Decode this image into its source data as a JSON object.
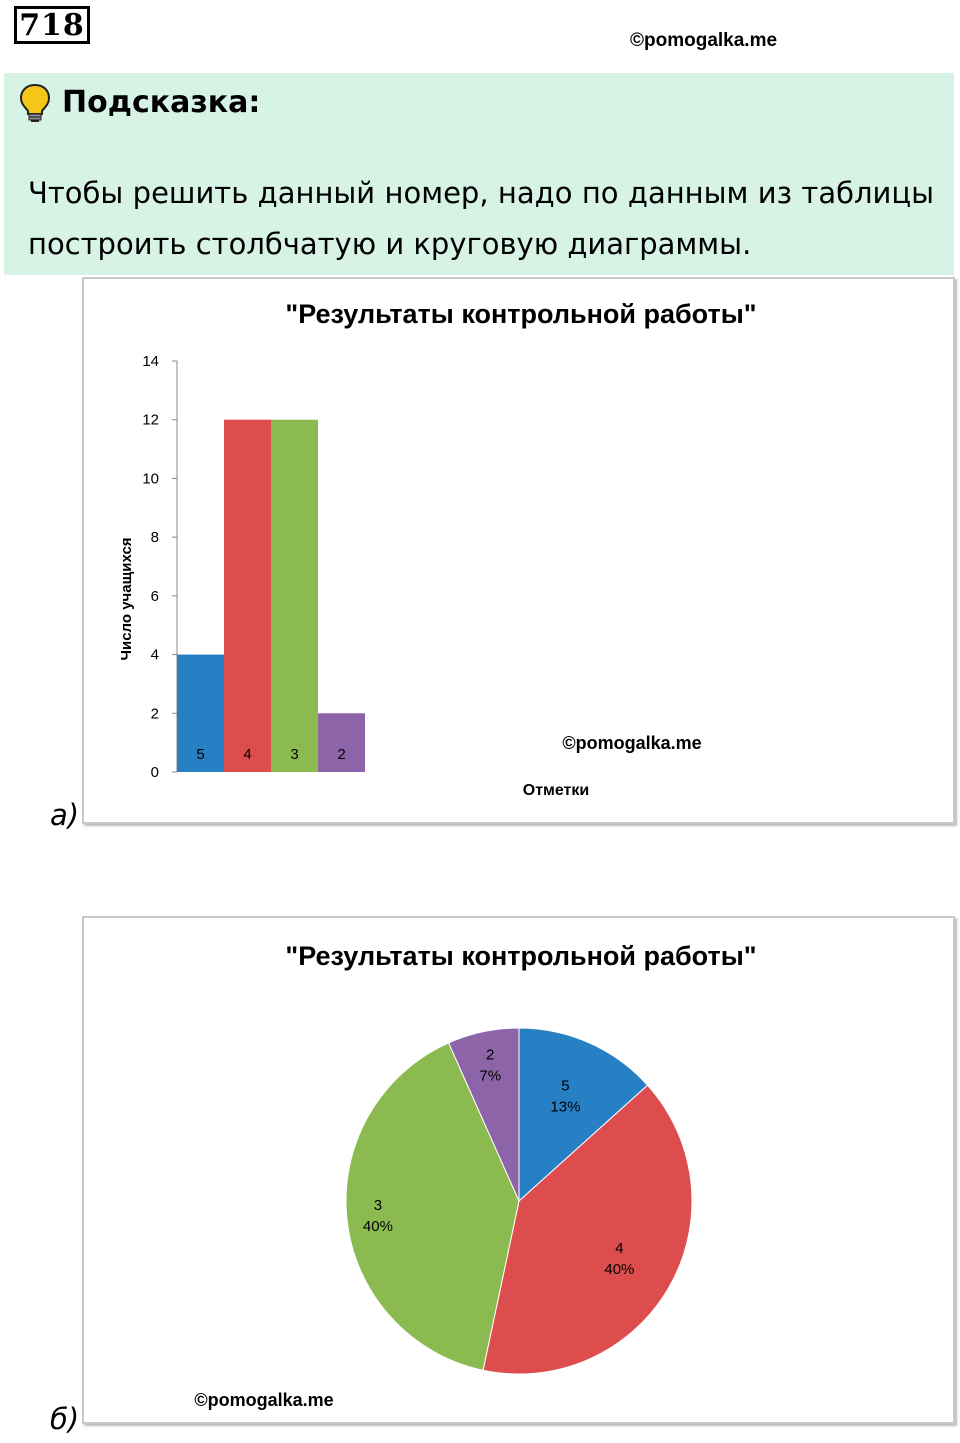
{
  "header": {
    "problem_number": "718",
    "watermark": "©pomogalka.me"
  },
  "hint": {
    "title": "Подсказка:",
    "text": "Чтобы решить данный номер, надо по данным из таблицы построить столбчатую и круговую диаграммы."
  },
  "labels": {
    "part_a": "а)",
    "part_b": "б)"
  },
  "colors": {
    "hint_bg": "#d6f3e6",
    "grade5": "#2880c4",
    "grade4": "#dd4d4d",
    "grade3": "#8bbb50",
    "grade2": "#8e64a8"
  },
  "chart_data": [
    {
      "type": "bar",
      "title": "\"Результаты контрольной работы\"",
      "xlabel": "Отметки",
      "ylabel": "Число учащихся",
      "ylim": [
        0,
        14
      ],
      "yticks": [
        0,
        2,
        4,
        6,
        8,
        10,
        12,
        14
      ],
      "categories": [
        "5",
        "4",
        "3",
        "2"
      ],
      "values": [
        4,
        12,
        12,
        2
      ],
      "colors": [
        "#2880c4",
        "#dd4d4d",
        "#8bbb50",
        "#8e64a8"
      ],
      "watermark": "©pomogalka.me"
    },
    {
      "type": "pie",
      "title": "\"Результаты контрольной работы\"",
      "categories": [
        "5",
        "4",
        "3",
        "2"
      ],
      "values": [
        4,
        12,
        12,
        2
      ],
      "percent_labels": [
        "13%",
        "40%",
        "40%",
        "7%"
      ],
      "colors": [
        "#2880c4",
        "#dd4d4d",
        "#8bbb50",
        "#8e64a8"
      ],
      "watermark": "©pomogalka.me"
    }
  ]
}
